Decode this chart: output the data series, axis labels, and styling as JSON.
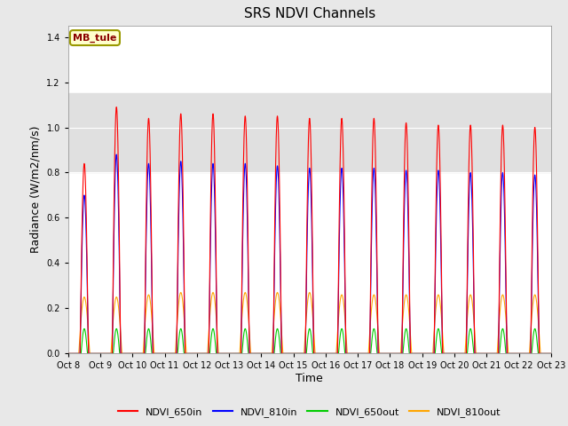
{
  "title": "SRS NDVI Channels",
  "xlabel": "Time",
  "ylabel": "Radiance (W/m2/nm/s)",
  "ylim": [
    0,
    1.45
  ],
  "xlim_days": [
    8,
    23
  ],
  "annotation_label": "MB_tule",
  "annotation_color": "#8B0000",
  "annotation_bg": "#FFFFCC",
  "annotation_border": "#999900",
  "figure_bg_color": "#e8e8e8",
  "plot_bg_color": "#ffffff",
  "shaded_region": [
    0.8,
    1.15
  ],
  "shaded_color": "#e0e0e0",
  "lines": {
    "NDVI_650in": {
      "color": "#FF0000"
    },
    "NDVI_810in": {
      "color": "#0000FF"
    },
    "NDVI_650out": {
      "color": "#00CC00"
    },
    "NDVI_810out": {
      "color": "#FFA500"
    }
  },
  "amp_650in": [
    0.84,
    1.09,
    1.04,
    1.06,
    1.06,
    1.05,
    1.05,
    1.04,
    1.04,
    1.04,
    1.02,
    1.01,
    1.01,
    1.01,
    1.0
  ],
  "amp_810in": [
    0.7,
    0.88,
    0.84,
    0.85,
    0.84,
    0.84,
    0.83,
    0.82,
    0.82,
    0.82,
    0.81,
    0.81,
    0.8,
    0.8,
    0.79
  ],
  "amp_650out": [
    0.11,
    0.11,
    0.11,
    0.11,
    0.11,
    0.11,
    0.11,
    0.11,
    0.11,
    0.11,
    0.11,
    0.11,
    0.11,
    0.11,
    0.11
  ],
  "amp_810out": [
    0.25,
    0.25,
    0.26,
    0.27,
    0.27,
    0.27,
    0.27,
    0.27,
    0.26,
    0.26,
    0.26,
    0.26,
    0.26,
    0.26,
    0.26
  ],
  "tick_labels": [
    "Oct 8",
    "Oct 9",
    "Oct 10",
    "Oct 11",
    "Oct 12",
    "Oct 13",
    "Oct 14",
    "Oct 15",
    "Oct 16",
    "Oct 17",
    "Oct 18",
    "Oct 19",
    "Oct 20",
    "Oct 21",
    "Oct 22",
    "Oct 23"
  ],
  "tick_positions": [
    8,
    9,
    10,
    11,
    12,
    13,
    14,
    15,
    16,
    17,
    18,
    19,
    20,
    21,
    22,
    23
  ],
  "yticks": [
    0.0,
    0.2,
    0.4,
    0.6,
    0.8,
    1.0,
    1.2,
    1.4
  ]
}
